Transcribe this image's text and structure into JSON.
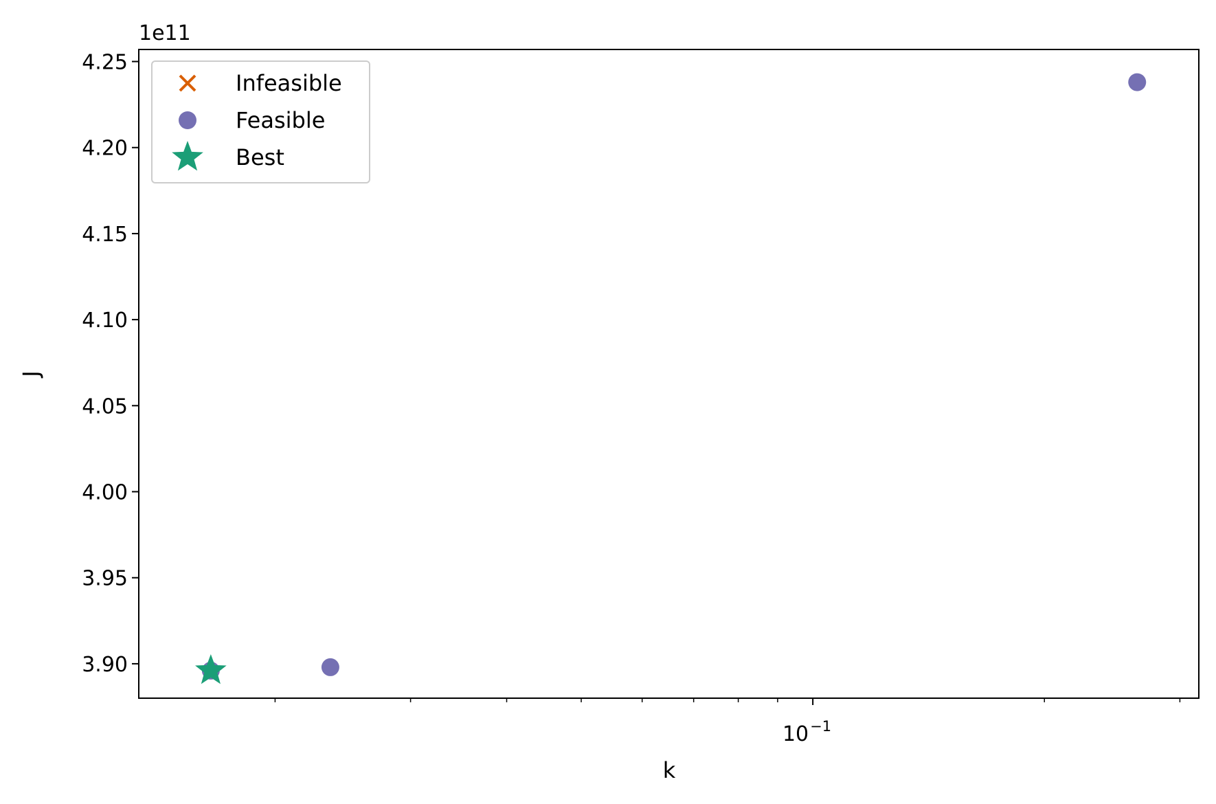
{
  "chart_data": {
    "type": "scatter",
    "xlabel": "k",
    "ylabel": "J",
    "x_scale": "log",
    "y_offset_label": "1e11",
    "xlim": [
      0.0133,
      0.3175
    ],
    "ylim": [
      388.0,
      425.7
    ],
    "x_ticks": [
      {
        "value": 0.1,
        "label": "10",
        "exp": "−1"
      }
    ],
    "x_minor_ticks": [
      0.02,
      0.03,
      0.04,
      0.05,
      0.06,
      0.07,
      0.08,
      0.09,
      0.2,
      0.3
    ],
    "y_ticks": [
      {
        "value": 390,
        "label": "3.90"
      },
      {
        "value": 395,
        "label": "3.95"
      },
      {
        "value": 400,
        "label": "4.00"
      },
      {
        "value": 405,
        "label": "4.05"
      },
      {
        "value": 410,
        "label": "4.10"
      },
      {
        "value": 415,
        "label": "4.15"
      },
      {
        "value": 420,
        "label": "4.20"
      },
      {
        "value": 425,
        "label": "4.25"
      }
    ],
    "grid": false,
    "legend_position": "top-left",
    "series": [
      {
        "name": "Infeasible",
        "marker": "x",
        "color": "#d95f02",
        "points": []
      },
      {
        "name": "Feasible",
        "marker": "circle",
        "color": "#7570b3",
        "points": [
          {
            "x": 0.0165,
            "y": 389.6
          },
          {
            "x": 0.0236,
            "y": 389.8
          },
          {
            "x": 0.264,
            "y": 423.8
          }
        ]
      },
      {
        "name": "Best",
        "marker": "star",
        "color": "#1b9e77",
        "points": [
          {
            "x": 0.0165,
            "y": 389.6
          }
        ]
      }
    ]
  }
}
